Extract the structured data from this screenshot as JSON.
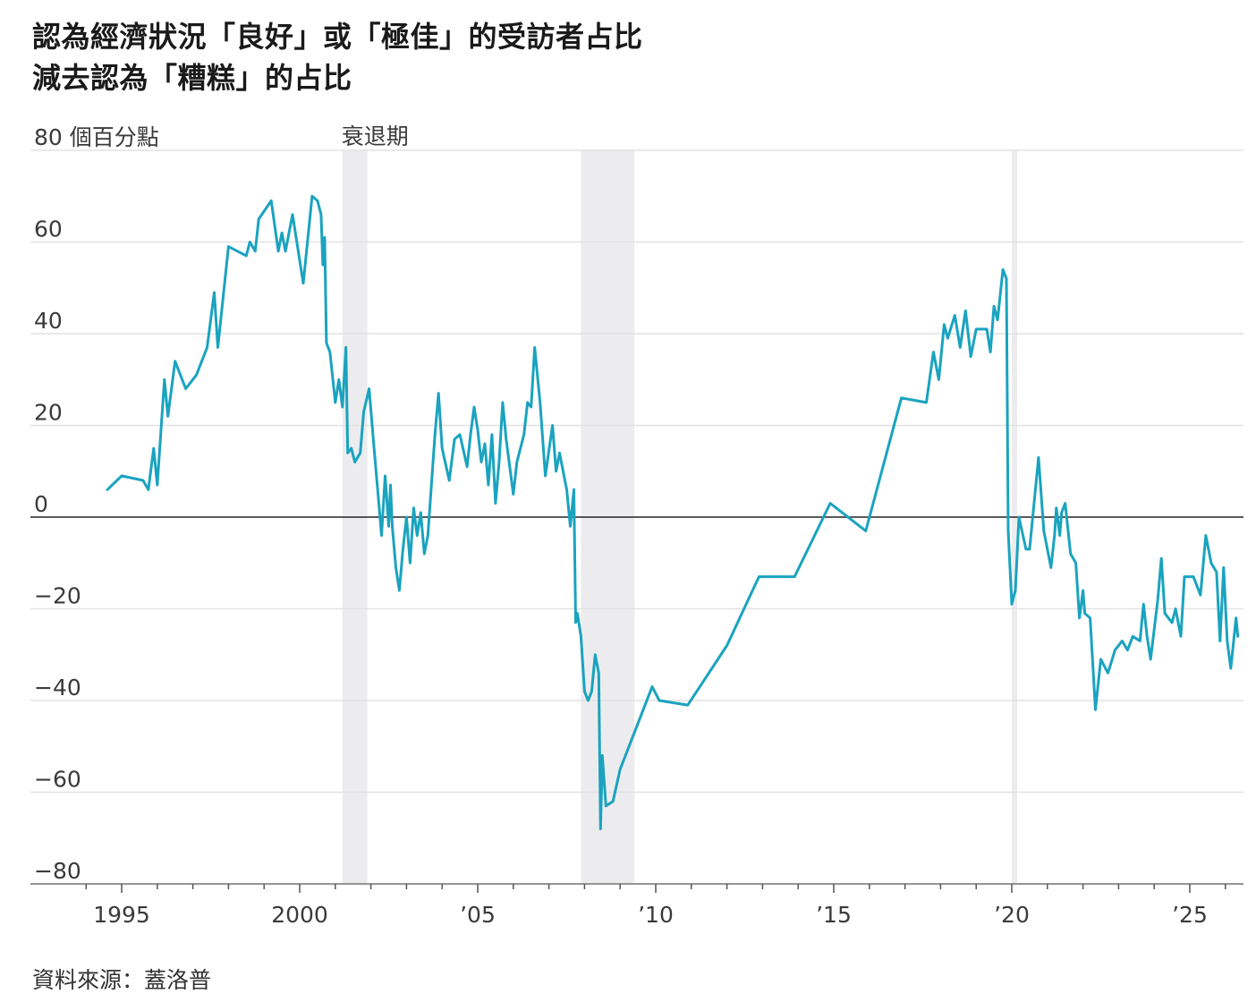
{
  "title_lines": [
    "認為經濟狀況「良好」或「極佳」的受訪者占比",
    "減去認為「糟糕」的占比"
  ],
  "source": "資料來源：蓋洛普",
  "colors": {
    "line": "#1aa3bf",
    "grid": "#e2e2e2",
    "zero_line": "#222222",
    "recession": "#ececef"
  },
  "chart_data": {
    "type": "line",
    "title": "認為經濟狀況「良好」或「極佳」的受訪者占比 減去認為「糟糕」的占比",
    "y_unit_label": "個百分點",
    "ylim": [
      -80,
      80
    ],
    "y_ticks": [
      80,
      60,
      40,
      20,
      0,
      -20,
      -40,
      -60,
      -80
    ],
    "y_tick_labels": [
      "80",
      "60",
      "40",
      "20",
      "0",
      "−20",
      "−40",
      "−60",
      "−80"
    ],
    "xlim": [
      1994.0,
      2026.4
    ],
    "x_ticks": [
      1995,
      2000,
      2005,
      2010,
      2015,
      2020,
      2025
    ],
    "x_tick_labels": [
      "1995",
      "2000",
      "’05",
      "’10",
      "’15",
      "’20",
      "’25"
    ],
    "grid": true,
    "recession_label": "衰退期",
    "recessions": [
      [
        2001.2,
        2001.9
      ],
      [
        2007.9,
        2009.4
      ],
      [
        2020.0,
        2020.15
      ]
    ],
    "series": [
      {
        "points": [
          [
            1994.6,
            6
          ],
          [
            1995.0,
            9
          ],
          [
            1995.6,
            8
          ],
          [
            1995.75,
            6
          ],
          [
            1995.9,
            15
          ],
          [
            1996.0,
            7
          ],
          [
            1996.2,
            30
          ],
          [
            1996.3,
            22
          ],
          [
            1996.5,
            34
          ],
          [
            1996.8,
            28
          ],
          [
            1997.1,
            31
          ],
          [
            1997.4,
            37
          ],
          [
            1997.6,
            49
          ],
          [
            1997.7,
            37
          ],
          [
            1998.0,
            59
          ],
          [
            1998.5,
            57
          ],
          [
            1998.6,
            60
          ],
          [
            1998.75,
            58
          ],
          [
            1998.85,
            65
          ],
          [
            1999.2,
            69
          ],
          [
            1999.4,
            58
          ],
          [
            1999.5,
            62
          ],
          [
            1999.6,
            58
          ],
          [
            1999.8,
            66
          ],
          [
            2000.1,
            51
          ],
          [
            2000.35,
            70
          ],
          [
            2000.5,
            69
          ],
          [
            2000.6,
            66
          ],
          [
            2000.65,
            55
          ],
          [
            2000.7,
            61
          ],
          [
            2000.75,
            38
          ],
          [
            2000.85,
            36
          ],
          [
            2001.0,
            25
          ],
          [
            2001.1,
            30
          ],
          [
            2001.2,
            24
          ],
          [
            2001.3,
            37
          ],
          [
            2001.35,
            14
          ],
          [
            2001.45,
            15
          ],
          [
            2001.55,
            12
          ],
          [
            2001.7,
            14
          ],
          [
            2001.8,
            23
          ],
          [
            2001.95,
            28
          ],
          [
            2002.1,
            14
          ],
          [
            2002.2,
            5
          ],
          [
            2002.3,
            -4
          ],
          [
            2002.4,
            9
          ],
          [
            2002.5,
            -2
          ],
          [
            2002.55,
            7
          ],
          [
            2002.6,
            -2
          ],
          [
            2002.7,
            -11
          ],
          [
            2002.8,
            -16
          ],
          [
            2002.9,
            -7
          ],
          [
            2003.0,
            0
          ],
          [
            2003.1,
            -10
          ],
          [
            2003.2,
            2
          ],
          [
            2003.3,
            -4
          ],
          [
            2003.4,
            1
          ],
          [
            2003.5,
            -8
          ],
          [
            2003.6,
            -4
          ],
          [
            2003.8,
            18
          ],
          [
            2003.9,
            27
          ],
          [
            2004.0,
            15
          ],
          [
            2004.2,
            8
          ],
          [
            2004.35,
            17
          ],
          [
            2004.5,
            18
          ],
          [
            2004.7,
            11
          ],
          [
            2004.8,
            18
          ],
          [
            2004.9,
            24
          ],
          [
            2005.0,
            19
          ],
          [
            2005.1,
            12
          ],
          [
            2005.2,
            16
          ],
          [
            2005.3,
            7
          ],
          [
            2005.4,
            18
          ],
          [
            2005.5,
            3
          ],
          [
            2005.6,
            12
          ],
          [
            2005.7,
            25
          ],
          [
            2005.8,
            17
          ],
          [
            2006.0,
            5
          ],
          [
            2006.1,
            12
          ],
          [
            2006.3,
            18
          ],
          [
            2006.4,
            25
          ],
          [
            2006.5,
            24
          ],
          [
            2006.6,
            37
          ],
          [
            2006.75,
            25
          ],
          [
            2006.9,
            9
          ],
          [
            2007.1,
            20
          ],
          [
            2007.2,
            10
          ],
          [
            2007.3,
            14
          ],
          [
            2007.5,
            6
          ],
          [
            2007.6,
            -2
          ],
          [
            2007.7,
            6
          ],
          [
            2007.75,
            -23
          ],
          [
            2007.8,
            -21
          ],
          [
            2007.9,
            -26
          ],
          [
            2008.0,
            -38
          ],
          [
            2008.1,
            -40
          ],
          [
            2008.2,
            -38
          ],
          [
            2008.3,
            -30
          ],
          [
            2008.4,
            -34
          ],
          [
            2008.45,
            -68
          ],
          [
            2008.5,
            -52
          ],
          [
            2008.6,
            -63
          ],
          [
            2008.8,
            -62
          ],
          [
            2009.0,
            -55
          ],
          [
            2009.9,
            -37
          ],
          [
            2010.1,
            -40
          ],
          [
            2010.9,
            -41
          ],
          [
            2012.0,
            -28
          ],
          [
            2012.9,
            -13
          ],
          [
            2013.9,
            -13
          ],
          [
            2014.9,
            3
          ],
          [
            2015.9,
            -3
          ],
          [
            2016.9,
            26
          ],
          [
            2017.6,
            25
          ],
          [
            2017.8,
            36
          ],
          [
            2017.95,
            30
          ],
          [
            2018.1,
            42
          ],
          [
            2018.2,
            39
          ],
          [
            2018.4,
            44
          ],
          [
            2018.55,
            37
          ],
          [
            2018.7,
            45
          ],
          [
            2018.85,
            35
          ],
          [
            2019.0,
            41
          ],
          [
            2019.3,
            41
          ],
          [
            2019.4,
            36
          ],
          [
            2019.5,
            46
          ],
          [
            2019.6,
            43
          ],
          [
            2019.75,
            54
          ],
          [
            2019.85,
            52
          ],
          [
            2019.9,
            -3
          ],
          [
            2020.0,
            -19
          ],
          [
            2020.1,
            -16
          ],
          [
            2020.2,
            0
          ],
          [
            2020.4,
            -7
          ],
          [
            2020.5,
            -7
          ],
          [
            2020.75,
            13
          ],
          [
            2020.9,
            -3
          ],
          [
            2021.1,
            -11
          ],
          [
            2021.2,
            -4
          ],
          [
            2021.25,
            2
          ],
          [
            2021.35,
            -4
          ],
          [
            2021.4,
            1
          ],
          [
            2021.5,
            3
          ],
          [
            2021.65,
            -8
          ],
          [
            2021.8,
            -10
          ],
          [
            2021.9,
            -22
          ],
          [
            2022.0,
            -16
          ],
          [
            2022.05,
            -21
          ],
          [
            2022.2,
            -22
          ],
          [
            2022.35,
            -42
          ],
          [
            2022.5,
            -31
          ],
          [
            2022.7,
            -34
          ],
          [
            2022.9,
            -29
          ],
          [
            2023.1,
            -27
          ],
          [
            2023.25,
            -29
          ],
          [
            2023.4,
            -26
          ],
          [
            2023.6,
            -27
          ],
          [
            2023.7,
            -19
          ],
          [
            2023.8,
            -26
          ],
          [
            2023.9,
            -31
          ],
          [
            2024.1,
            -18
          ],
          [
            2024.2,
            -9
          ],
          [
            2024.3,
            -21
          ],
          [
            2024.5,
            -23
          ],
          [
            2024.6,
            -20
          ],
          [
            2024.75,
            -26
          ],
          [
            2024.85,
            -13
          ],
          [
            2025.1,
            -13
          ],
          [
            2025.3,
            -17
          ],
          [
            2025.45,
            -4
          ],
          [
            2025.6,
            -10
          ],
          [
            2025.75,
            -12
          ],
          [
            2025.85,
            -27
          ],
          [
            2025.95,
            -11
          ],
          [
            2026.05,
            -27
          ],
          [
            2026.15,
            -33
          ],
          [
            2026.3,
            -22
          ],
          [
            2026.35,
            -26
          ]
        ]
      }
    ]
  }
}
